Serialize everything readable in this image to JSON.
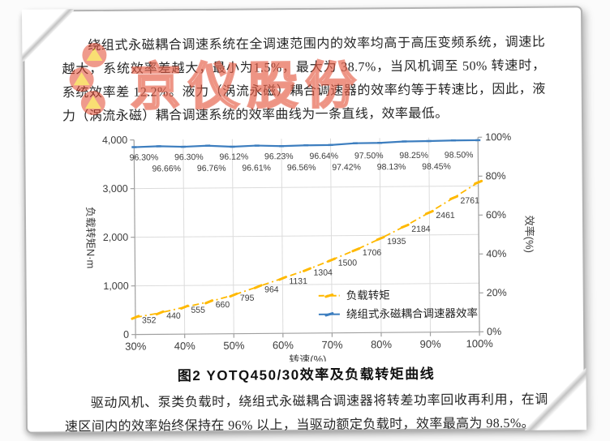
{
  "watermark": {
    "text": "京仪股份",
    "logo_name": "three-circle-triangle-logo",
    "logo_color": "#E2472F",
    "logo_triangle_color": "#F5C400"
  },
  "paragraphs": {
    "intro": "绕组式永磁耦合调速系统在全调速范围内的效率均高于高压变频系统，调速比越大，系统效率差越大，最小为1.5%，最大为 38.7%，当风机调至 50% 转速时，系统效率差 12.2%。液力（涡流永磁）耦合调速器的效率约等于转速比，因此，液力（涡流永磁）耦合调速系统的效率曲线为一条直线，效率最低。",
    "conclusion": "驱动风机、泵类负载时，绕组式永磁耦合调速器将转差功率回收再利用，在调速区间内的效率始终保持在 96% 以上，当驱动额定负载时，效率最高为 98.5%。"
  },
  "figure": {
    "caption": "图2 YOTQ450/30效率及负载转矩曲线"
  },
  "chart_data": {
    "type": "line",
    "x": [
      30,
      35,
      40,
      45,
      50,
      55,
      60,
      65,
      70,
      75,
      80,
      85,
      90,
      95,
      100
    ],
    "xlabel": "转速(%)",
    "x_tick_labels": [
      "30%",
      "40%",
      "50%",
      "60%",
      "70%",
      "80%",
      "90%",
      "100%"
    ],
    "left_axis": {
      "label": "负载转矩N·m",
      "ticks": [
        "0",
        "1,000",
        "2,000",
        "3,000",
        "4,000"
      ],
      "range": [
        0,
        4000
      ]
    },
    "right_axis": {
      "label": "效率(%)",
      "ticks": [
        "0%",
        "20%",
        "40%",
        "60%",
        "80%",
        "100%"
      ],
      "range": [
        0,
        100
      ]
    },
    "grid": true,
    "legend_position": "inside-right-bottom",
    "series": [
      {
        "name": "负载转矩",
        "axis": "left",
        "color": "#FFB900",
        "style": "dash-dot",
        "values": [
          352,
          440,
          555,
          660,
          795,
          964,
          1131,
          1304,
          1500,
          1706,
          1935,
          2184,
          2461,
          2761,
          3073
        ],
        "point_labels": [
          "352",
          "440",
          "555",
          "660",
          "795",
          "964",
          "1131",
          "1304",
          "1500",
          "1706",
          "1935",
          "2184",
          "2461",
          "2761",
          ""
        ]
      },
      {
        "name": "绕组式永磁耦合调速器效率",
        "axis": "right",
        "color": "#3D7EBF",
        "style": "solid",
        "values": [
          96.3,
          96.66,
          96.3,
          96.76,
          96.12,
          96.61,
          96.23,
          96.56,
          96.64,
          97.42,
          97.5,
          98.13,
          98.25,
          98.45,
          98.5
        ],
        "point_labels": [
          "96.30%",
          "96.66%",
          "96.30%",
          "96.76%",
          "96.12%",
          "96.61%",
          "96.23%",
          "96.56%",
          "96.64%",
          "97.42%",
          "97.50%",
          "98.13%",
          "98.25%",
          "98.45%",
          "98.50%"
        ]
      }
    ]
  }
}
